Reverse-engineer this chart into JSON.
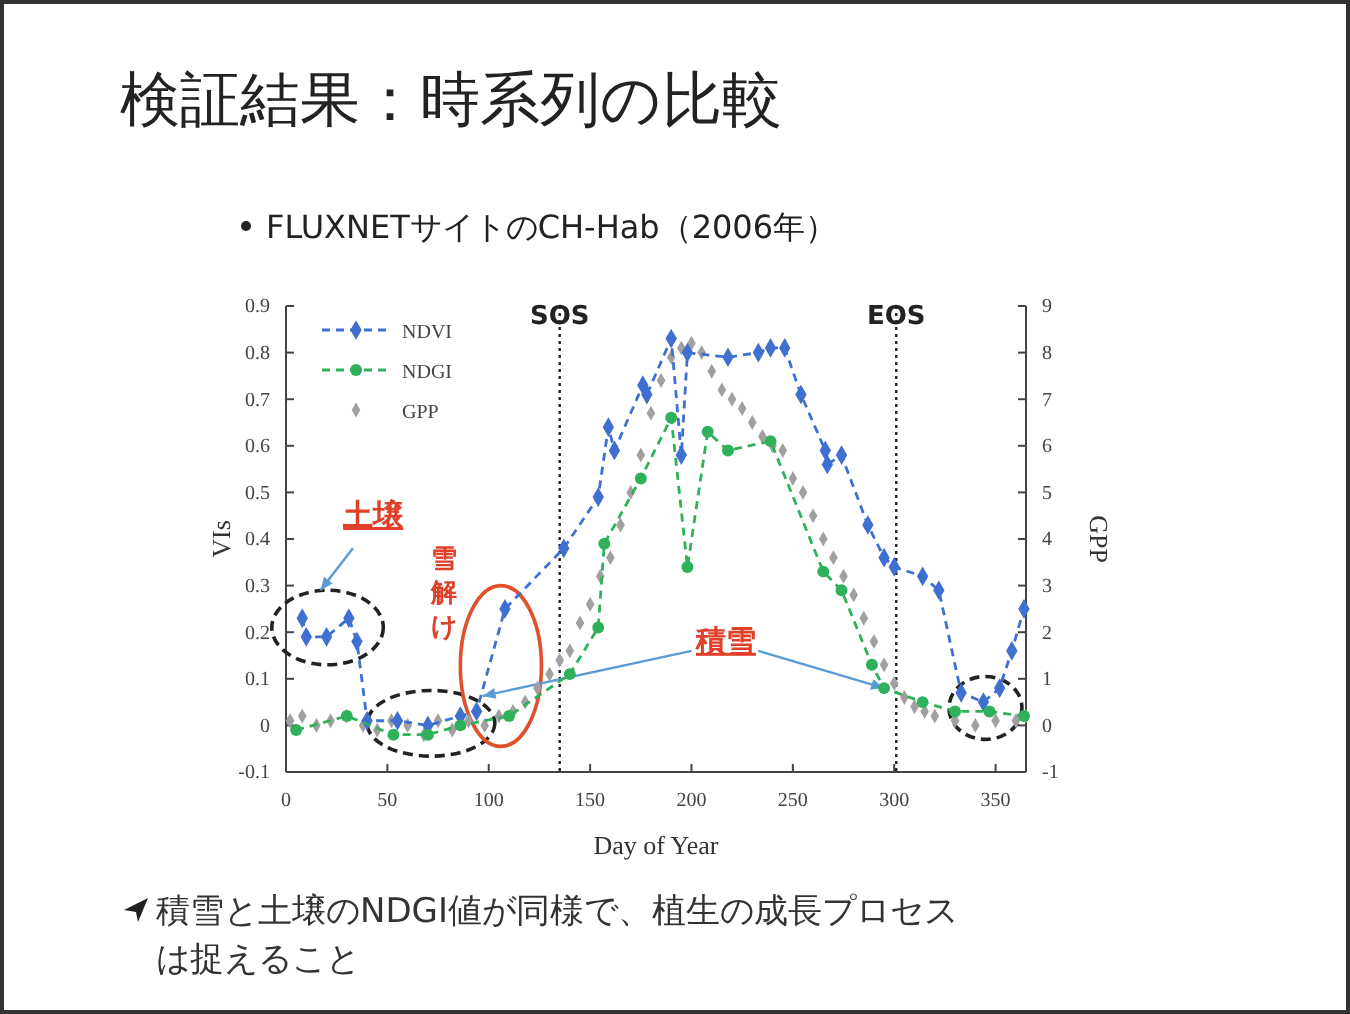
{
  "chart_data": {
    "type": "line",
    "title": "検証結果：時系列の比較",
    "subtitle": "FLUXNETサイトのCH-Hab（2006年）",
    "xlabel": "Day of Year",
    "ylabel": "VIs",
    "y2label": "GPP",
    "xlim": [
      0,
      365
    ],
    "xticks": [
      0,
      50,
      100,
      150,
      200,
      250,
      300,
      350
    ],
    "ylim": [
      -0.1,
      0.9
    ],
    "yticks": [
      -0.1,
      0,
      0.1,
      0.2,
      0.3,
      0.4,
      0.5,
      0.6,
      0.7,
      0.8,
      0.9
    ],
    "y2lim": [
      -1,
      9
    ],
    "y2ticks": [
      -1,
      0,
      1,
      2,
      3,
      4,
      5,
      6,
      7,
      8,
      9
    ],
    "grid": false,
    "legend": "top left",
    "ref_lines": [
      {
        "axis": "x",
        "value": 135,
        "label": "SOS",
        "line_style": "dotted"
      },
      {
        "axis": "x",
        "value": 301,
        "label": "EOS",
        "line_style": "dotted"
      }
    ],
    "annotations": [
      "土壌",
      "雪解け",
      {
        "text": "積雪",
        "x": 295,
        "y": 0.08
      },
      "積雪と土壌のNDGI値が同様で、植生の成長プロセスは捉えること"
    ],
    "series": [
      {
        "name": "NDVI",
        "color": "#3f6fd0",
        "marker": "diamond",
        "line_style": "dashed",
        "axis": "y",
        "x": [
          8,
          10,
          20,
          31,
          35,
          40,
          55,
          70,
          86,
          94,
          108,
          137,
          154,
          159,
          162,
          176,
          178,
          190,
          195,
          198,
          218,
          233,
          239,
          246,
          254,
          266,
          267,
          274,
          287,
          295,
          300,
          314,
          322,
          333,
          344,
          352,
          358,
          364
        ],
        "values": [
          0.23,
          0.19,
          0.19,
          0.23,
          0.18,
          0.01,
          0.01,
          0.0,
          0.02,
          0.03,
          0.25,
          0.38,
          0.49,
          0.64,
          0.59,
          0.73,
          0.71,
          0.83,
          0.58,
          0.8,
          0.79,
          0.8,
          0.81,
          0.81,
          0.71,
          0.59,
          0.56,
          0.58,
          0.43,
          0.36,
          0.34,
          0.32,
          0.29,
          0.07,
          0.05,
          0.08,
          0.16,
          0.25
        ]
      },
      {
        "name": "NDGI",
        "color": "#2eb15a",
        "marker": "circle",
        "line_style": "dashed",
        "axis": "y",
        "x": [
          5,
          30,
          53,
          70,
          86,
          110,
          140,
          154,
          157,
          175,
          190,
          198,
          208,
          218,
          239,
          265,
          274,
          289,
          295,
          314,
          330,
          347,
          364
        ],
        "values": [
          -0.01,
          0.02,
          -0.02,
          -0.02,
          0.0,
          0.02,
          0.11,
          0.21,
          0.39,
          0.53,
          0.66,
          0.34,
          0.63,
          0.59,
          0.61,
          0.33,
          0.29,
          0.13,
          0.08,
          0.05,
          0.03,
          0.03,
          0.02
        ]
      },
      {
        "name": "GPP",
        "type": "scatter",
        "color": "#a0a0a0",
        "marker": "diamond",
        "axis": "y2",
        "x": [
          2,
          8,
          15,
          22,
          30,
          38,
          45,
          52,
          60,
          68,
          75,
          82,
          90,
          98,
          105,
          112,
          118,
          124,
          130,
          135,
          140,
          145,
          150,
          155,
          160,
          165,
          170,
          175,
          180,
          185,
          190,
          195,
          200,
          205,
          210,
          215,
          220,
          225,
          230,
          235,
          240,
          245,
          250,
          255,
          260,
          265,
          270,
          275,
          280,
          285,
          290,
          295,
          300,
          305,
          310,
          315,
          320,
          330,
          340,
          350,
          360,
          365
        ],
        "values": [
          0.1,
          0.2,
          0.0,
          0.1,
          0.2,
          0.0,
          -0.1,
          0.1,
          0.0,
          -0.2,
          0.1,
          -0.1,
          0.1,
          0.0,
          0.2,
          0.3,
          0.5,
          0.8,
          1.1,
          1.4,
          1.6,
          2.2,
          2.6,
          3.2,
          3.6,
          4.3,
          5.0,
          5.8,
          6.7,
          7.4,
          7.9,
          8.1,
          8.2,
          8.0,
          7.6,
          7.2,
          7.0,
          6.8,
          6.5,
          6.2,
          6.0,
          5.9,
          5.3,
          5.0,
          4.5,
          4.0,
          3.6,
          3.2,
          2.8,
          2.3,
          1.8,
          1.3,
          0.9,
          0.6,
          0.4,
          0.3,
          0.2,
          0.1,
          0.0,
          0.1,
          0.1,
          0.2
        ]
      }
    ]
  }
}
